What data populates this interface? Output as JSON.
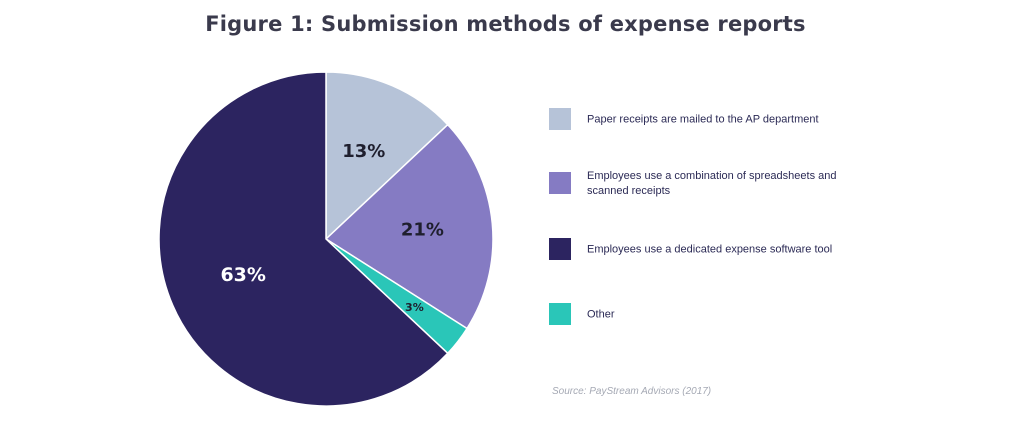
{
  "title": "Figure 1: Submission methods of expense reports",
  "source": "Source: PayStream Advisors (2017)",
  "colors": {
    "paper": "#b6c3d8",
    "combination": "#857bc3",
    "dedicated": "#2c2460",
    "other": "#2ac6b8"
  },
  "chart_data": {
    "type": "pie",
    "title": "Figure 1: Submission methods of expense reports",
    "slices": [
      {
        "label": "Paper receipts are mailed to the AP department",
        "value": 13,
        "display": "13%",
        "color": "#b6c3d8"
      },
      {
        "label": "Employees use a combination of spreadsheets and scanned receipts",
        "value": 21,
        "display": "21%",
        "color": "#857bc3"
      },
      {
        "label": "Other",
        "value": 3,
        "display": "3%",
        "color": "#2ac6b8"
      },
      {
        "label": "Employees use a dedicated expense software tool",
        "value": 63,
        "display": "63%",
        "color": "#2c2460"
      }
    ],
    "legend": {
      "placement": "right",
      "items": [
        {
          "label": "Paper receipts are mailed to the AP department",
          "color": "#b6c3d8"
        },
        {
          "label": "Employees use a combination of spreadsheets and scanned receipts",
          "color": "#857bc3"
        },
        {
          "label": "Employees use a dedicated expense software tool",
          "color": "#2c2460"
        },
        {
          "label": "Other",
          "color": "#2ac6b8"
        }
      ]
    }
  }
}
